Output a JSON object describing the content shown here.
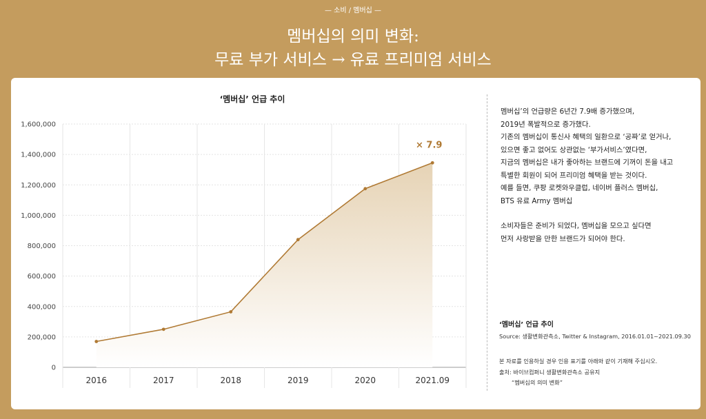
{
  "header": {
    "eyebrow": "— 소비 / 멤버십 —",
    "title_line1": "멤버십의 의미 변화:",
    "title_line2": "무료 부가 서비스 → 유료 프리미엄 서비스"
  },
  "chart_data": {
    "type": "area",
    "title": "‘멤버십’ 언급 추이",
    "categories": [
      "2016",
      "2017",
      "2018",
      "2019",
      "2020",
      "2021.09"
    ],
    "series": [
      {
        "values": [
          170000,
          250000,
          365000,
          840000,
          1175000,
          1345000
        ]
      }
    ],
    "ylim": [
      0,
      1600000
    ],
    "yticks": [
      0,
      200000,
      400000,
      600000,
      800000,
      1000000,
      1200000,
      1400000,
      1600000
    ],
    "ytick_labels": [
      "0",
      "200,000",
      "400,000",
      "600,000",
      "800,000",
      "1,000,000",
      "1,200,000",
      "1,400,000",
      "1,600,000"
    ],
    "annotation": "× 7.9",
    "grid": true,
    "colors": {
      "line": "#b07a34",
      "fill_top": "#e6d3b5",
      "fill_bottom": "#ffffff"
    }
  },
  "side": {
    "paragraphs": [
      "멤버십’의 언급량은 6년간 7.9배 증가했으며,",
      "2019년 폭발적으로 증가했다.",
      "기존의 멤버십이 통신사 혜택의 일환으로 ‘공짜’로 얻거나,",
      "있으면 좋고 없어도 상관없는 ‘부가서비스’였다면,",
      "지금의 멤버십은 내가 좋아하는 브랜드에 기꺼이 돈을 내고",
      "특별한 회원이 되어 프리미엄 혜택을 받는 것이다.",
      "예를 들면, 쿠팡 로켓와우클럽, 네이버 플러스 멤버십,",
      "BTS 유료 Army 멤버십"
    ],
    "paragraphs2": [
      "소비자들은 준비가 되었다, 멤버십을 모으고 싶다면",
      "먼저 사랑받을 만한 브랜드가 되어야 한다."
    ],
    "source_title": "‘멤버십’ 언급 추이",
    "source": "Source: 생활변화관측소, Twitter & Instagram, 2016.01.01~2021.09.30",
    "notice1": "본 자료를 인용하실 경우 인용 표기를 아래와 같이 기재해 주십시오.",
    "notice2": "출처: 바이브컴퍼니 생활변화관측소 공유지",
    "notice3": "“멤버십의 의미 변화”"
  }
}
